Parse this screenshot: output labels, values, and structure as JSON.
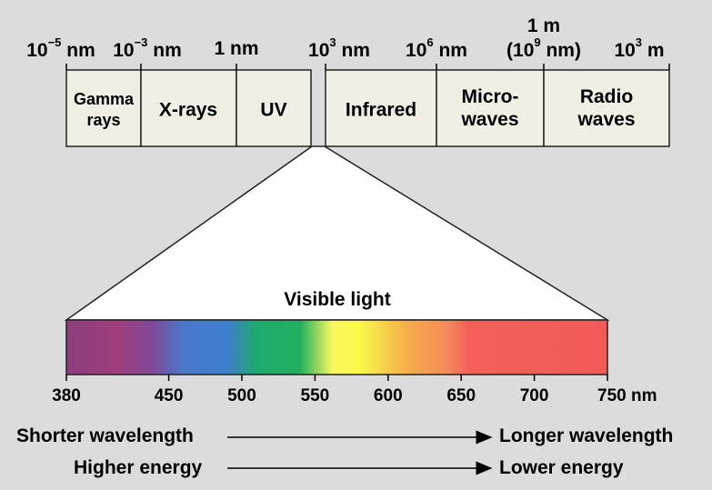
{
  "scale": {
    "marks": [
      {
        "base": "10",
        "exp": "−5",
        "unit": "nm"
      },
      {
        "base": "10",
        "exp": "−3",
        "unit": "nm"
      },
      {
        "base": "1 nm"
      },
      {
        "base": "10",
        "exp": "3",
        "unit": "nm"
      },
      {
        "base": "10",
        "exp": "6",
        "unit": "nm"
      },
      {
        "line1": "1 m",
        "pre": "(10",
        "exp": "9",
        "post": " nm)"
      },
      {
        "base": "10",
        "exp": "3",
        "unit": "m"
      }
    ]
  },
  "bands": [
    {
      "line1": "Gamma",
      "line2": "rays"
    },
    {
      "line1": "X-rays"
    },
    {
      "line1": "UV"
    },
    {
      "line1": "Infrared"
    },
    {
      "line1": "Micro-",
      "line2": "waves"
    },
    {
      "line1": "Radio",
      "line2": "waves"
    }
  ],
  "visible": {
    "title": "Visible light",
    "ticks": [
      "380",
      "450",
      "500",
      "550",
      "600",
      "650",
      "700",
      "750 nm"
    ],
    "tick_values": [
      380,
      450,
      500,
      550,
      600,
      650,
      700,
      750
    ],
    "gradient_stops": [
      {
        "nm": 380,
        "color": "#8b3f7c"
      },
      {
        "nm": 415,
        "color": "#a13e7c"
      },
      {
        "nm": 440,
        "color": "#7f4a9b"
      },
      {
        "nm": 460,
        "color": "#4a78c9"
      },
      {
        "nm": 490,
        "color": "#3d7fce"
      },
      {
        "nm": 510,
        "color": "#1faa6e"
      },
      {
        "nm": 540,
        "color": "#22b060"
      },
      {
        "nm": 562,
        "color": "#f8f860"
      },
      {
        "nm": 580,
        "color": "#fafa4a"
      },
      {
        "nm": 612,
        "color": "#f5b048"
      },
      {
        "nm": 640,
        "color": "#f58a5a"
      },
      {
        "nm": 655,
        "color": "#f46058"
      },
      {
        "nm": 750,
        "color": "#f25a58"
      }
    ]
  },
  "arrows": [
    {
      "left": "Shorter wavelength",
      "right": "Longer wavelength"
    },
    {
      "left": "Higher energy",
      "right": "Lower energy"
    }
  ],
  "colors": {
    "background": "#dcdcdc",
    "band_fill": "#f0efe3",
    "outline": "#222222"
  }
}
